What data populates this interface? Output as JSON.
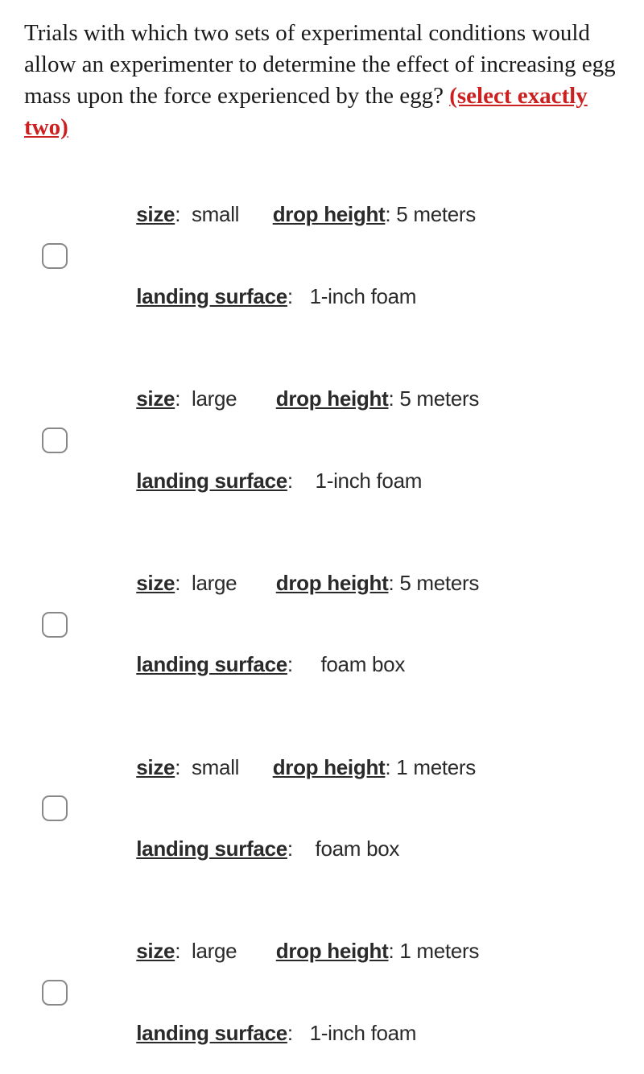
{
  "question": {
    "text": "Trials with which two sets of experimental conditions would allow an experimenter to determine the effect of increasing egg mass upon the force experienced by the egg? ",
    "hint": "(select exactly two)"
  },
  "labels": {
    "size": "size",
    "drop_height": "drop height",
    "landing_surface": "landing surface"
  },
  "options": [
    {
      "size": "small",
      "drop_height": "5 meters",
      "landing_surface": "1-inch foam"
    },
    {
      "size": "large",
      "drop_height": "5 meters",
      "landing_surface": "1-inch foam"
    },
    {
      "size": "large",
      "drop_height": "5 meters",
      "landing_surface": "foam box"
    },
    {
      "size": "small",
      "drop_height": "1 meters",
      "landing_surface": "foam box"
    },
    {
      "size": "large",
      "drop_height": "1 meters",
      "landing_surface": "1-inch foam"
    }
  ],
  "style": {
    "text_color": "#1a1a1a",
    "hint_color": "#cc1f1f",
    "checkbox_border": "#888888",
    "background": "#ffffff",
    "question_fontsize": 29,
    "option_fontsize": 26
  }
}
